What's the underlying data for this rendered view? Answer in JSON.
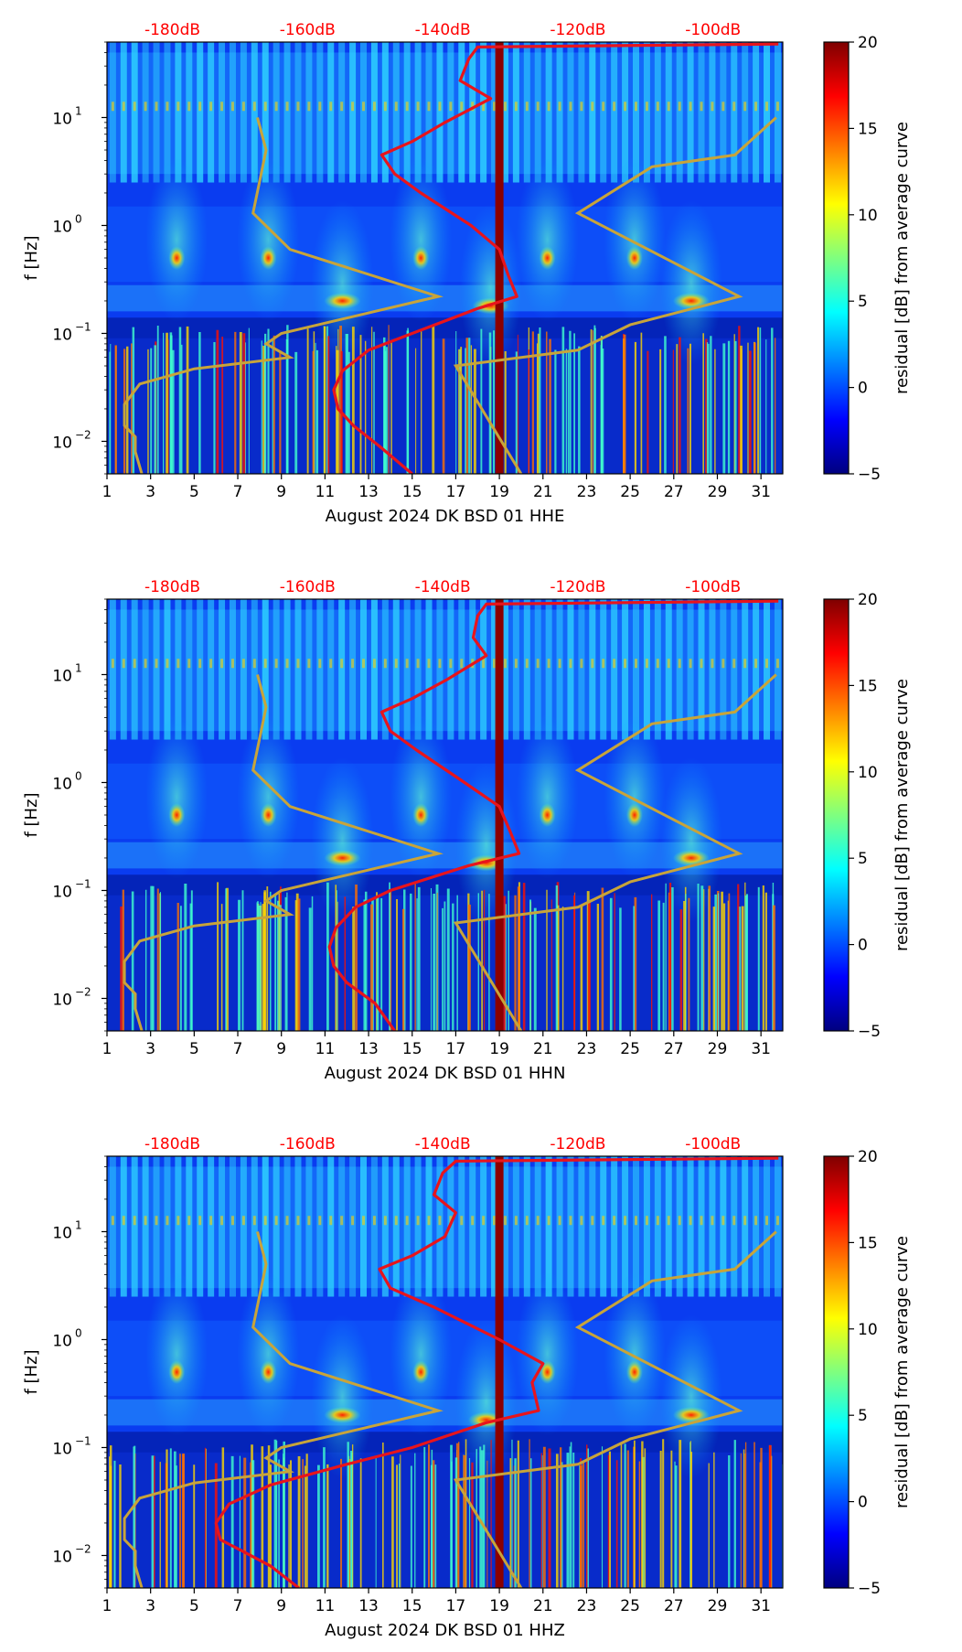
{
  "colors": {
    "colormap": [
      "#00007f",
      "#0000ff",
      "#007fff",
      "#00ffff",
      "#7fff7f",
      "#ffff00",
      "#ff7f00",
      "#ff0000",
      "#7f0000"
    ],
    "db_text": "#ff0000",
    "red_curve": "#e8141c",
    "model_curve": "#c8a43a",
    "dark_band": "#8b0000"
  },
  "chart_data": [
    {
      "type": "heatmap",
      "panel": "HHE",
      "xlabel": "August 2024 DK BSD 01 HHE",
      "ylabel": "f [Hz]",
      "x_ticks": [
        "1",
        "3",
        "5",
        "7",
        "9",
        "11",
        "13",
        "15",
        "17",
        "19",
        "21",
        "23",
        "25",
        "27",
        "29",
        "31"
      ],
      "xlim": [
        1,
        32
      ],
      "y_scale": "log",
      "ylim": [
        0.005,
        50
      ],
      "y_ticks": [
        {
          "label": "10",
          "exp": "1"
        },
        {
          "label": "10",
          "exp": "0"
        },
        {
          "label": "10",
          "exp": "−1"
        },
        {
          "label": "10",
          "exp": "−2"
        }
      ],
      "top_db_labels": [
        "-180dB",
        "-160dB",
        "-140dB",
        "-120dB",
        "-100dB"
      ],
      "top_db_positions_day": [
        4,
        10.2,
        16.4,
        22.6,
        28.8
      ],
      "colorbar": {
        "label": "residual [dB] from average curve",
        "ticks": [
          "20",
          "15",
          "10",
          "5",
          "0",
          "−5"
        ],
        "range": [
          -5,
          20
        ]
      },
      "dark_band_day": 19,
      "model_curves": {
        "nlnm": [
          [
            2.6,
            0.005
          ],
          [
            2.3,
            0.008
          ],
          [
            2.3,
            0.011
          ],
          [
            1.8,
            0.014
          ],
          [
            1.8,
            0.022
          ],
          [
            2.5,
            0.034
          ],
          [
            5.0,
            0.047
          ],
          [
            9.4,
            0.06
          ],
          [
            8.3,
            0.08
          ],
          [
            9.0,
            0.1
          ],
          [
            16.2,
            0.22
          ],
          [
            9.4,
            0.6
          ],
          [
            7.7,
            1.3
          ],
          [
            8.3,
            5.0
          ],
          [
            7.9,
            10.0
          ]
        ],
        "nhnm": [
          [
            20.0,
            0.005
          ],
          [
            17.0,
            0.05
          ],
          [
            22.6,
            0.07
          ],
          [
            25.0,
            0.12
          ],
          [
            30.0,
            0.22
          ],
          [
            22.6,
            1.3
          ],
          [
            26.0,
            3.5
          ],
          [
            29.8,
            4.5
          ],
          [
            31.7,
            10.0
          ]
        ]
      },
      "red_curve": [
        [
          15.0,
          0.005
        ],
        [
          13.5,
          0.009
        ],
        [
          12.3,
          0.014
        ],
        [
          11.6,
          0.02
        ],
        [
          11.4,
          0.03
        ],
        [
          11.8,
          0.045
        ],
        [
          13.0,
          0.07
        ],
        [
          15.0,
          0.1
        ],
        [
          18.0,
          0.17
        ],
        [
          19.8,
          0.22
        ],
        [
          19.4,
          0.35
        ],
        [
          19.0,
          0.6
        ],
        [
          17.7,
          1.0
        ],
        [
          15.4,
          2.0
        ],
        [
          14.2,
          3.0
        ],
        [
          13.6,
          4.5
        ],
        [
          15.0,
          6.0
        ],
        [
          16.5,
          9.0
        ],
        [
          18.6,
          15.0
        ],
        [
          17.2,
          22.0
        ],
        [
          17.6,
          35.0
        ],
        [
          18.0,
          45.0
        ],
        [
          31.8,
          48.0
        ]
      ],
      "hot_spots": [
        [
          11.8,
          0.2
        ],
        [
          18.6,
          0.18
        ],
        [
          27.8,
          0.2
        ],
        [
          8.4,
          0.5
        ],
        [
          25.2,
          0.5
        ],
        [
          21.2,
          0.5
        ],
        [
          4.2,
          0.5
        ],
        [
          15.4,
          0.5
        ]
      ]
    },
    {
      "type": "heatmap",
      "panel": "HHN",
      "xlabel": "August 2024 DK BSD 01 HHN",
      "ylabel": "f [Hz]",
      "x_ticks": [
        "1",
        "3",
        "5",
        "7",
        "9",
        "11",
        "13",
        "15",
        "17",
        "19",
        "21",
        "23",
        "25",
        "27",
        "29",
        "31"
      ],
      "xlim": [
        1,
        32
      ],
      "y_scale": "log",
      "ylim": [
        0.005,
        50
      ],
      "y_ticks": [
        {
          "label": "10",
          "exp": "1"
        },
        {
          "label": "10",
          "exp": "0"
        },
        {
          "label": "10",
          "exp": "−1"
        },
        {
          "label": "10",
          "exp": "−2"
        }
      ],
      "top_db_labels": [
        "-180dB",
        "-160dB",
        "-140dB",
        "-120dB",
        "-100dB"
      ],
      "top_db_positions_day": [
        4,
        10.2,
        16.4,
        22.6,
        28.8
      ],
      "colorbar": {
        "label": "residual [dB] from average curve",
        "ticks": [
          "20",
          "15",
          "10",
          "5",
          "0",
          "−5"
        ],
        "range": [
          -5,
          20
        ]
      },
      "dark_band_day": 19,
      "model_curves": {
        "nlnm": [
          [
            2.6,
            0.005
          ],
          [
            2.3,
            0.008
          ],
          [
            2.3,
            0.011
          ],
          [
            1.8,
            0.014
          ],
          [
            1.8,
            0.022
          ],
          [
            2.5,
            0.034
          ],
          [
            5.0,
            0.047
          ],
          [
            9.4,
            0.06
          ],
          [
            8.3,
            0.08
          ],
          [
            9.0,
            0.1
          ],
          [
            16.2,
            0.22
          ],
          [
            9.4,
            0.6
          ],
          [
            7.7,
            1.3
          ],
          [
            8.3,
            5.0
          ],
          [
            7.9,
            10.0
          ]
        ],
        "nhnm": [
          [
            20.0,
            0.005
          ],
          [
            17.0,
            0.05
          ],
          [
            22.6,
            0.07
          ],
          [
            25.0,
            0.12
          ],
          [
            30.0,
            0.22
          ],
          [
            22.6,
            1.3
          ],
          [
            26.0,
            3.5
          ],
          [
            29.8,
            4.5
          ],
          [
            31.7,
            10.0
          ]
        ]
      },
      "red_curve": [
        [
          14.2,
          0.005
        ],
        [
          13.3,
          0.009
        ],
        [
          12.0,
          0.014
        ],
        [
          11.4,
          0.02
        ],
        [
          11.2,
          0.03
        ],
        [
          11.5,
          0.045
        ],
        [
          12.4,
          0.07
        ],
        [
          14.0,
          0.1
        ],
        [
          17.6,
          0.17
        ],
        [
          19.9,
          0.22
        ],
        [
          19.5,
          0.35
        ],
        [
          19.0,
          0.6
        ],
        [
          17.4,
          1.0
        ],
        [
          15.2,
          2.0
        ],
        [
          14.0,
          3.0
        ],
        [
          13.6,
          4.5
        ],
        [
          15.0,
          6.0
        ],
        [
          16.6,
          9.0
        ],
        [
          18.4,
          15.0
        ],
        [
          17.8,
          22.0
        ],
        [
          18.0,
          35.0
        ],
        [
          18.4,
          45.0
        ],
        [
          31.8,
          48.0
        ]
      ],
      "hot_spots": [
        [
          11.8,
          0.2
        ],
        [
          18.4,
          0.18
        ],
        [
          27.8,
          0.2
        ],
        [
          8.4,
          0.5
        ],
        [
          25.2,
          0.5
        ],
        [
          21.2,
          0.5
        ],
        [
          4.2,
          0.5
        ],
        [
          15.4,
          0.5
        ]
      ]
    },
    {
      "type": "heatmap",
      "panel": "HHZ",
      "xlabel": "August 2024 DK BSD 01 HHZ",
      "ylabel": "f [Hz]",
      "x_ticks": [
        "1",
        "3",
        "5",
        "7",
        "9",
        "11",
        "13",
        "15",
        "17",
        "19",
        "21",
        "23",
        "25",
        "27",
        "29",
        "31"
      ],
      "xlim": [
        1,
        32
      ],
      "y_scale": "log",
      "ylim": [
        0.005,
        50
      ],
      "y_ticks": [
        {
          "label": "10",
          "exp": "1"
        },
        {
          "label": "10",
          "exp": "0"
        },
        {
          "label": "10",
          "exp": "−1"
        },
        {
          "label": "10",
          "exp": "−2"
        }
      ],
      "top_db_labels": [
        "-180dB",
        "-160dB",
        "-140dB",
        "-120dB",
        "-100dB"
      ],
      "top_db_positions_day": [
        4,
        10.2,
        16.4,
        22.6,
        28.8
      ],
      "colorbar": {
        "label": "residual [dB] from average curve",
        "ticks": [
          "20",
          "15",
          "10",
          "5",
          "0",
          "−5"
        ],
        "range": [
          -5,
          20
        ]
      },
      "dark_band_day": 19,
      "model_curves": {
        "nlnm": [
          [
            2.6,
            0.005
          ],
          [
            2.3,
            0.008
          ],
          [
            2.3,
            0.011
          ],
          [
            1.8,
            0.014
          ],
          [
            1.8,
            0.022
          ],
          [
            2.5,
            0.034
          ],
          [
            5.0,
            0.047
          ],
          [
            9.4,
            0.06
          ],
          [
            8.3,
            0.08
          ],
          [
            9.0,
            0.1
          ],
          [
            16.2,
            0.22
          ],
          [
            9.4,
            0.6
          ],
          [
            7.7,
            1.3
          ],
          [
            8.3,
            5.0
          ],
          [
            7.9,
            10.0
          ]
        ],
        "nhnm": [
          [
            20.0,
            0.005
          ],
          [
            17.0,
            0.05
          ],
          [
            22.6,
            0.07
          ],
          [
            25.0,
            0.12
          ],
          [
            30.0,
            0.22
          ],
          [
            22.6,
            1.3
          ],
          [
            26.0,
            3.5
          ],
          [
            29.8,
            4.5
          ],
          [
            31.7,
            10.0
          ]
        ]
      },
      "red_curve": [
        [
          9.8,
          0.005
        ],
        [
          8.5,
          0.008
        ],
        [
          7.2,
          0.011
        ],
        [
          6.2,
          0.014
        ],
        [
          6.0,
          0.02
        ],
        [
          6.6,
          0.03
        ],
        [
          8.5,
          0.045
        ],
        [
          12.0,
          0.07
        ],
        [
          15.0,
          0.1
        ],
        [
          18.4,
          0.17
        ],
        [
          20.8,
          0.22
        ],
        [
          20.5,
          0.4
        ],
        [
          21.0,
          0.6
        ],
        [
          19.0,
          1.0
        ],
        [
          16.0,
          2.0
        ],
        [
          14.0,
          3.0
        ],
        [
          13.5,
          4.5
        ],
        [
          15.0,
          6.0
        ],
        [
          16.5,
          9.0
        ],
        [
          17.0,
          15.0
        ],
        [
          16.0,
          22.0
        ],
        [
          16.4,
          35.0
        ],
        [
          17.0,
          45.0
        ],
        [
          31.8,
          48.0
        ]
      ],
      "hot_spots": [
        [
          11.8,
          0.2
        ],
        [
          18.4,
          0.18
        ],
        [
          27.8,
          0.2
        ],
        [
          8.4,
          0.5
        ],
        [
          25.2,
          0.5
        ],
        [
          21.2,
          0.5
        ],
        [
          4.2,
          0.5
        ],
        [
          15.4,
          0.5
        ]
      ]
    }
  ]
}
